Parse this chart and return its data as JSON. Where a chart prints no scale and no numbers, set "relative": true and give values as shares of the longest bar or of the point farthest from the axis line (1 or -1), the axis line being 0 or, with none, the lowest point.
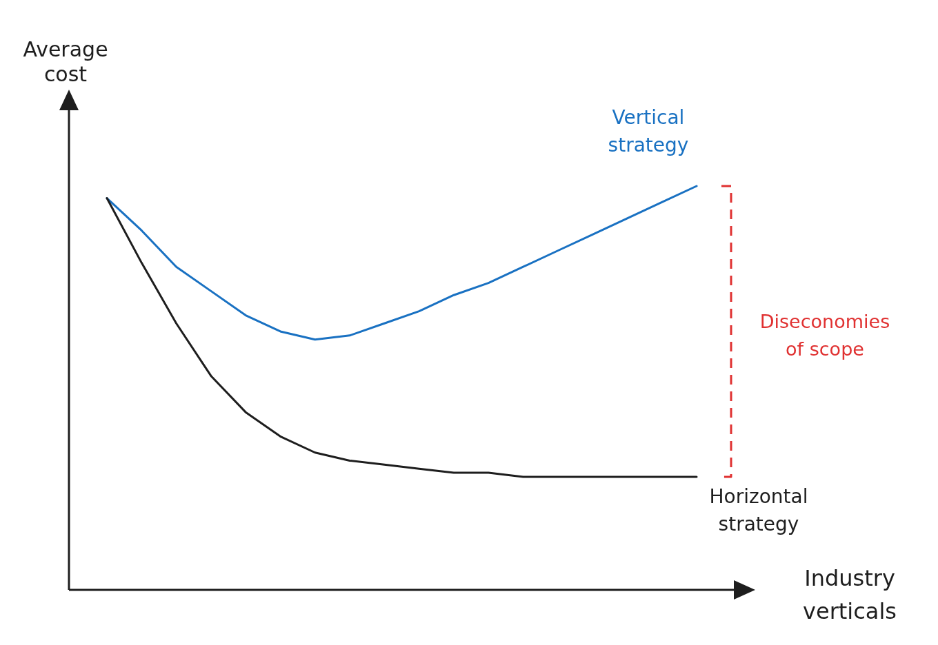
{
  "chart_data": {
    "type": "line",
    "relative": true,
    "xlabel": "Industry verticals",
    "ylabel": "Average cost",
    "marker": "none",
    "line_style": "solid",
    "categories": [
      null,
      null,
      null,
      null,
      null,
      null,
      null,
      null,
      null,
      null,
      null,
      null,
      null,
      null,
      null,
      null,
      null,
      null
    ],
    "series": [
      {
        "name": "Vertical strategy",
        "color": "#1971c2",
        "values": [
          0.97,
          0.89,
          0.8,
          0.74,
          0.68,
          0.64,
          0.62,
          0.63,
          0.66,
          0.69,
          0.73,
          0.76,
          0.8,
          0.84,
          0.88,
          0.92,
          0.96,
          1
        ]
      },
      {
        "name": "Horizontal strategy",
        "color": "#1e1e1e",
        "values": [
          0.97,
          0.81,
          0.66,
          0.53,
          0.44,
          0.38,
          0.34,
          0.32,
          0.31,
          0.3,
          0.29,
          0.29,
          0.28,
          0.28,
          0.28,
          0.28,
          0.28,
          0.28
        ]
      }
    ],
    "annotations": [
      "Diseconomies of scope"
    ]
  }
}
